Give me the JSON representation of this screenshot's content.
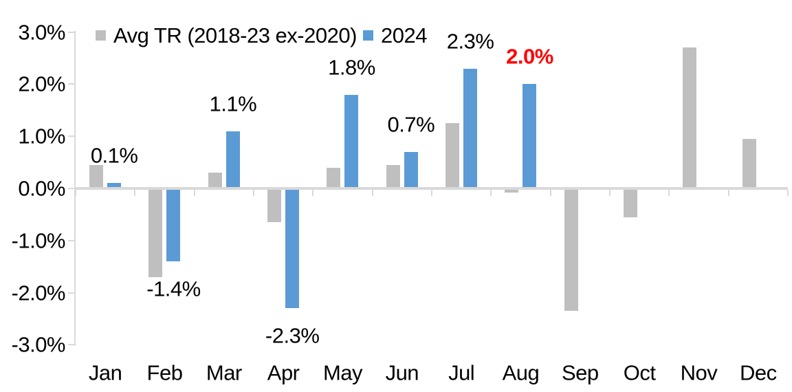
{
  "legend": {
    "items": [
      {
        "label": "Avg TR (2018-23 ex-2020)",
        "color": "#BFBFBF"
      },
      {
        "label": "2024",
        "color": "#5B9BD5"
      }
    ]
  },
  "chart_data": {
    "type": "bar",
    "title": "",
    "categories": [
      "Jan",
      "Feb",
      "Mar",
      "Apr",
      "May",
      "Jun",
      "Jul",
      "Aug",
      "Sep",
      "Oct",
      "Nov",
      "Dec"
    ],
    "series": [
      {
        "name": "Avg TR (2018-23 ex-2020)",
        "color": "#BFBFBF",
        "values": [
          0.45,
          -1.7,
          0.3,
          -0.65,
          0.4,
          0.45,
          1.25,
          -0.08,
          -2.35,
          -0.55,
          2.7,
          0.95
        ]
      },
      {
        "name": "2024",
        "color": "#5B9BD5",
        "values": [
          0.1,
          -1.4,
          1.1,
          -2.3,
          1.8,
          0.7,
          2.3,
          2.0,
          null,
          null,
          null,
          null
        ]
      }
    ],
    "data_labels": {
      "series": "2024",
      "texts": [
        "0.1%",
        "-1.4%",
        "1.1%",
        "-2.3%",
        "1.8%",
        "0.7%",
        "2.3%",
        "2.0%",
        null,
        null,
        null,
        null
      ],
      "highlight_index": 7,
      "highlight_color": "#FF0000",
      "default_color": "#000000"
    },
    "y_axis": {
      "min": -3,
      "max": 3,
      "step": 1,
      "tick_labels": [
        "3.0%",
        "2.0%",
        "1.0%",
        "0.0%",
        "-1.0%",
        "-2.0%",
        "-3.0%"
      ]
    },
    "x_axis": {
      "tick_labels": [
        "Jan",
        "Feb",
        "Mar",
        "Apr",
        "May",
        "Jun",
        "Jul",
        "Aug",
        "Sep",
        "Oct",
        "Nov",
        "Dec"
      ]
    },
    "legend_position": "top",
    "gridlines": false,
    "axis_color": "#D9D9D9",
    "background": "#FFFFFF"
  }
}
